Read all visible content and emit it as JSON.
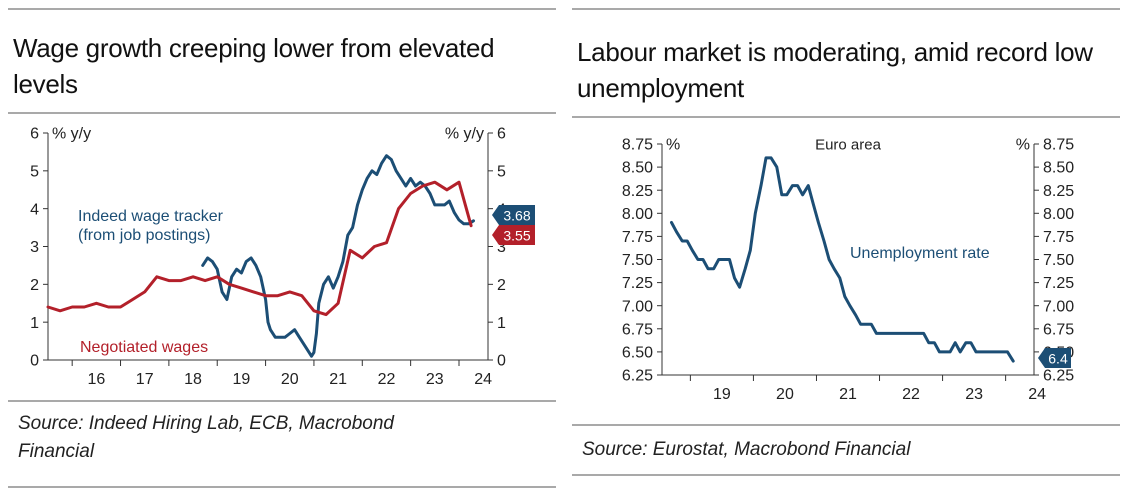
{
  "chart_data": [
    {
      "type": "line",
      "title": "Wage growth creeping lower from elevated levels",
      "left_axis_unit": "% y/y",
      "right_axis_unit": "% y/y",
      "ylim": [
        0,
        6
      ],
      "y_ticks": [
        "0",
        "1",
        "2",
        "3",
        "4",
        "5",
        "6"
      ],
      "xlim": [
        2015.5,
        2024.6
      ],
      "x_ticks": [
        "16",
        "17",
        "18",
        "19",
        "20",
        "21",
        "22",
        "23",
        "24"
      ],
      "series": [
        {
          "name": "Indeed wage tracker (from job postings)",
          "color": "#1c4e75",
          "end_label": "3.68",
          "x": [
            2018.7,
            2018.8,
            2018.9,
            2019.0,
            2019.1,
            2019.2,
            2019.3,
            2019.4,
            2019.5,
            2019.6,
            2019.7,
            2019.8,
            2019.9,
            2020.0,
            2020.05,
            2020.1,
            2020.2,
            2020.3,
            2020.4,
            2020.5,
            2020.6,
            2020.7,
            2020.8,
            2020.9,
            2020.95,
            2021.0,
            2021.05,
            2021.1,
            2021.2,
            2021.3,
            2021.4,
            2021.5,
            2021.6,
            2021.7,
            2021.8,
            2021.9,
            2022.0,
            2022.1,
            2022.2,
            2022.3,
            2022.4,
            2022.5,
            2022.6,
            2022.7,
            2022.8,
            2022.9,
            2023.0,
            2023.1,
            2023.2,
            2023.3,
            2023.4,
            2023.5,
            2023.6,
            2023.7,
            2023.8,
            2023.9,
            2024.0,
            2024.1,
            2024.2,
            2024.3
          ],
          "values": [
            2.5,
            2.7,
            2.6,
            2.4,
            1.8,
            1.6,
            2.2,
            2.4,
            2.3,
            2.6,
            2.7,
            2.5,
            2.2,
            1.6,
            1.0,
            0.8,
            0.6,
            0.6,
            0.6,
            0.7,
            0.8,
            0.6,
            0.4,
            0.2,
            0.1,
            0.2,
            0.7,
            1.5,
            2.0,
            2.2,
            1.9,
            2.2,
            2.6,
            3.3,
            3.5,
            4.1,
            4.5,
            4.8,
            5.0,
            4.9,
            5.2,
            5.4,
            5.3,
            5.0,
            4.8,
            4.6,
            4.8,
            4.6,
            4.7,
            4.6,
            4.4,
            4.1,
            4.1,
            4.1,
            4.2,
            3.9,
            3.7,
            3.6,
            3.6,
            3.68
          ]
        },
        {
          "name": "Negotiated wages",
          "color": "#b3202a",
          "end_label": "3.55",
          "x": [
            2015.5,
            2015.75,
            2016.0,
            2016.25,
            2016.5,
            2016.75,
            2017.0,
            2017.25,
            2017.5,
            2017.75,
            2018.0,
            2018.25,
            2018.5,
            2018.75,
            2019.0,
            2019.25,
            2019.5,
            2019.75,
            2020.0,
            2020.25,
            2020.5,
            2020.75,
            2021.0,
            2021.25,
            2021.5,
            2021.75,
            2022.0,
            2022.25,
            2022.5,
            2022.75,
            2023.0,
            2023.25,
            2023.5,
            2023.75,
            2024.0,
            2024.25
          ],
          "values": [
            1.4,
            1.3,
            1.4,
            1.4,
            1.5,
            1.4,
            1.4,
            1.6,
            1.8,
            2.2,
            2.1,
            2.1,
            2.2,
            2.1,
            2.2,
            2.0,
            1.9,
            1.8,
            1.7,
            1.7,
            1.8,
            1.7,
            1.3,
            1.2,
            1.5,
            2.9,
            2.7,
            3.0,
            3.1,
            4.0,
            4.4,
            4.6,
            4.7,
            4.5,
            4.7,
            3.55
          ]
        }
      ],
      "annotations": [
        {
          "text_lines": [
            "Indeed wage tracker",
            "(from job postings)"
          ],
          "color": "#1c4e75"
        },
        {
          "text_lines": [
            "Negotiated wages"
          ],
          "color": "#b3202a"
        }
      ],
      "source": [
        "Source: Indeed Hiring Lab, ECB, Macrobond",
        "Financial"
      ],
      "grid": false
    },
    {
      "type": "line",
      "title": "Labour market is moderating, amid record low unemployment",
      "subtitle": "Euro area",
      "left_axis_unit": "%",
      "right_axis_unit": "%",
      "ylim": [
        6.25,
        8.75
      ],
      "y_ticks": [
        "6.25",
        "6.50",
        "6.75",
        "7.00",
        "7.25",
        "7.50",
        "7.75",
        "8.00",
        "8.25",
        "8.50",
        "8.75"
      ],
      "xlim": [
        2018.55,
        2024.45
      ],
      "x_ticks": [
        "19",
        "20",
        "21",
        "22",
        "23",
        "24"
      ],
      "series": [
        {
          "name": "Unemployment rate",
          "color": "#1c4e75",
          "end_label": "6.4",
          "x": [
            2018.7,
            2018.78,
            2018.87,
            2018.95,
            2019.03,
            2019.12,
            2019.2,
            2019.28,
            2019.37,
            2019.45,
            2019.53,
            2019.62,
            2019.7,
            2019.78,
            2019.87,
            2019.95,
            2020.03,
            2020.12,
            2020.2,
            2020.28,
            2020.37,
            2020.45,
            2020.53,
            2020.62,
            2020.7,
            2020.78,
            2020.87,
            2020.95,
            2021.03,
            2021.12,
            2021.2,
            2021.28,
            2021.37,
            2021.45,
            2021.53,
            2021.62,
            2021.7,
            2021.78,
            2021.87,
            2021.95,
            2022.03,
            2022.12,
            2022.2,
            2022.28,
            2022.37,
            2022.45,
            2022.53,
            2022.62,
            2022.7,
            2022.78,
            2022.87,
            2022.95,
            2023.03,
            2023.12,
            2023.2,
            2023.28,
            2023.37,
            2023.45,
            2023.53,
            2023.62,
            2023.7,
            2023.78,
            2023.87,
            2023.95,
            2024.03,
            2024.12
          ],
          "values": [
            7.9,
            7.8,
            7.7,
            7.7,
            7.6,
            7.5,
            7.5,
            7.4,
            7.4,
            7.5,
            7.5,
            7.5,
            7.3,
            7.2,
            7.4,
            7.6,
            8.0,
            8.3,
            8.6,
            8.6,
            8.5,
            8.2,
            8.2,
            8.3,
            8.3,
            8.2,
            8.3,
            8.1,
            7.9,
            7.7,
            7.5,
            7.4,
            7.3,
            7.1,
            7.0,
            6.9,
            6.8,
            6.8,
            6.8,
            6.7,
            6.7,
            6.7,
            6.7,
            6.7,
            6.7,
            6.7,
            6.7,
            6.7,
            6.7,
            6.6,
            6.6,
            6.5,
            6.5,
            6.5,
            6.6,
            6.5,
            6.6,
            6.6,
            6.5,
            6.5,
            6.5,
            6.5,
            6.5,
            6.5,
            6.5,
            6.4
          ]
        }
      ],
      "annotations": [
        {
          "text_lines": [
            "Unemployment rate"
          ],
          "color": "#1c4e75"
        }
      ],
      "source": [
        "Source: Eurostat, Macrobond Financial"
      ],
      "grid": false
    }
  ]
}
